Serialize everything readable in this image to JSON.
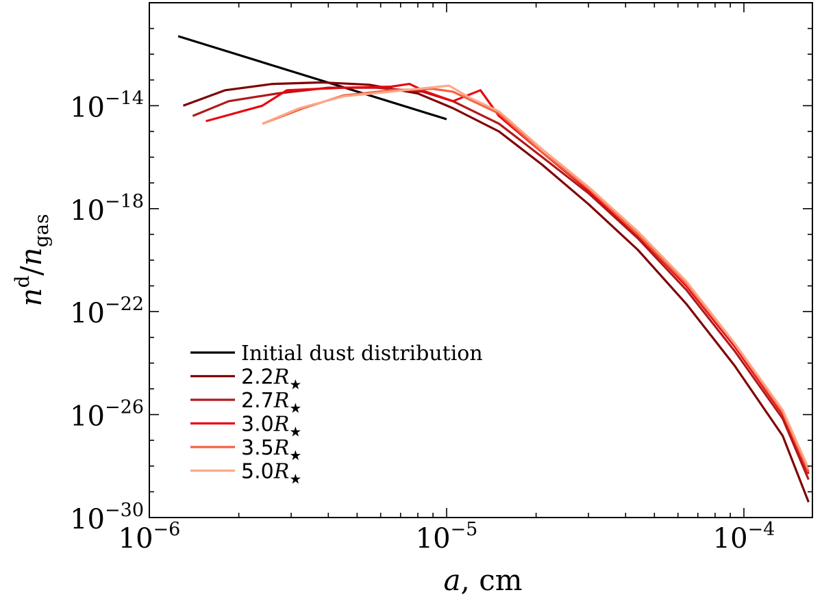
{
  "chart_data": {
    "type": "line",
    "title": "",
    "x_scale": "log",
    "y_scale": "log",
    "xlim": [
      1e-06,
      0.00017
    ],
    "ylim": [
      1e-30,
      1e-10
    ],
    "xlabel": {
      "main": "a,",
      "unit": "cm"
    },
    "ylabel": {
      "num": "n",
      "num_sup": "d",
      "sep": "/",
      "den": "n",
      "den_sub": "gas"
    },
    "x_ticks": [
      {
        "value": 1e-06,
        "base": "10",
        "exp": "−6"
      },
      {
        "value": 1e-05,
        "base": "10",
        "exp": "−5"
      },
      {
        "value": 0.0001,
        "base": "10",
        "exp": "−4"
      }
    ],
    "y_ticks": [
      {
        "value": 1e-14,
        "base": "10",
        "exp": "−14"
      },
      {
        "value": 1e-18,
        "base": "10",
        "exp": "−18"
      },
      {
        "value": 1e-22,
        "base": "10",
        "exp": "−22"
      },
      {
        "value": 1e-26,
        "base": "10",
        "exp": "−26"
      },
      {
        "value": 1e-30,
        "base": "10",
        "exp": "−30"
      }
    ],
    "legend_position": "lower-left",
    "series": [
      {
        "name": "Initial dust distribution",
        "legend_prefix": "Initial dust distribution",
        "legend_suffix": "",
        "color": "#000000",
        "x": [
          1.25e-06,
          1e-05
        ],
        "y": [
          5e-12,
          3e-15
        ]
      },
      {
        "name": "2.2R★",
        "legend_prefix": "2.2",
        "legend_suffix": "R★",
        "color": "#7f0000",
        "x": [
          1.3e-06,
          1.8e-06,
          2.6e-06,
          3.8e-06,
          5.5e-06,
          8e-06,
          1.05e-05,
          1.5e-05,
          2.1e-05,
          3e-05,
          4.4e-05,
          6.4e-05,
          9.3e-05,
          0.000135,
          0.000165
        ],
        "y": [
          1e-14,
          4e-14,
          7e-14,
          8e-14,
          6.5e-14,
          3e-14,
          8e-15,
          1e-15,
          5e-17,
          1.5e-18,
          2.5e-20,
          2e-22,
          8e-25,
          1.5e-27,
          4e-30
        ]
      },
      {
        "name": "2.7R★",
        "legend_prefix": "2.7",
        "legend_suffix": "R★",
        "color": "#b01a1a",
        "x": [
          1.4e-06,
          1.85e-06,
          2.7e-06,
          4e-06,
          5.8e-06,
          8.3e-06,
          1.05e-05,
          1.5e-05,
          2.1e-05,
          3e-05,
          4.4e-05,
          6.4e-05,
          9.3e-05,
          0.000135,
          0.000165
        ],
        "y": [
          4e-15,
          1.5e-14,
          3e-14,
          5e-14,
          5e-14,
          3.5e-14,
          1.5e-14,
          2e-15,
          1e-16,
          4e-18,
          7e-20,
          7e-22,
          3e-24,
          7e-27,
          3e-29
        ]
      },
      {
        "name": "3.0R★",
        "legend_prefix": "3.0",
        "legend_suffix": "R★",
        "color": "#e8050f",
        "x": [
          1.55e-06,
          2.4e-06,
          2.9e-06,
          4.5e-06,
          6.5e-06,
          7.5e-06,
          8.5e-06,
          1.05e-05,
          1.3e-05,
          1.5e-05,
          2.1e-05,
          3e-05,
          4.4e-05,
          6.4e-05,
          9.3e-05,
          0.000135,
          0.000165
        ],
        "y": [
          2.5e-15,
          1e-14,
          4e-14,
          5e-14,
          5.5e-14,
          7e-14,
          3.5e-14,
          1.5e-14,
          4e-14,
          4e-15,
          1.5e-16,
          5e-18,
          9e-20,
          1e-21,
          4.5e-24,
          1e-26,
          5e-29
        ]
      },
      {
        "name": "3.5R★",
        "legend_prefix": "3.5",
        "legend_suffix": "R★",
        "color": "#f4603e",
        "x": [
          2.4e-06,
          3.3e-06,
          4.5e-06,
          6.5e-06,
          9e-06,
          1.05e-05,
          1.5e-05,
          2.1e-05,
          3e-05,
          4.4e-05,
          6.4e-05,
          9.3e-05,
          0.000135,
          0.000165
        ],
        "y": [
          2e-15,
          8e-15,
          2.5e-14,
          4e-14,
          4.5e-14,
          3.5e-14,
          5e-15,
          1.5e-16,
          6e-18,
          1e-19,
          1.2e-21,
          5.5e-24,
          1.2e-26,
          6e-29
        ]
      },
      {
        "name": "5.0R★",
        "legend_prefix": "5.0",
        "legend_suffix": "R★",
        "color": "#fca88a",
        "x": [
          2.4e-06,
          3.2e-06,
          4.5e-06,
          6.5e-06,
          8e-06,
          1.02e-05,
          1.2e-05,
          1.5e-05,
          2.1e-05,
          3e-05,
          4.4e-05,
          6.4e-05,
          9.3e-05,
          0.000135,
          0.000165
        ],
        "y": [
          2e-15,
          8e-15,
          2.3e-14,
          3.5e-14,
          4.5e-14,
          6e-14,
          2e-14,
          6e-15,
          2e-16,
          7e-18,
          1.3e-19,
          1.5e-21,
          6e-24,
          1.5e-26,
          8e-29
        ]
      }
    ]
  }
}
